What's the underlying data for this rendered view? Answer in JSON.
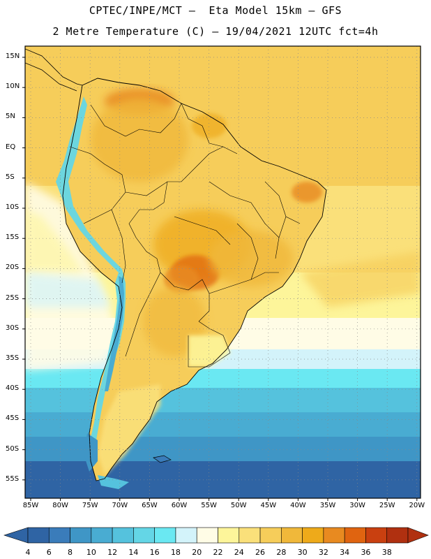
{
  "header": {
    "title_line1": "CPTEC/INPE/MCT –  Eta Model 15km – GFS",
    "title_line2": "2 Metre Temperature (C) – 19/04/2021 12UTC fct=4h"
  },
  "map": {
    "lat_labels": [
      "15N",
      "10N",
      "5N",
      "EQ",
      "5S",
      "10S",
      "15S",
      "20S",
      "25S",
      "30S",
      "35S",
      "40S",
      "45S",
      "50S",
      "55S"
    ],
    "lon_labels": [
      "85W",
      "80W",
      "75W",
      "70W",
      "65W",
      "60W",
      "55W",
      "50W",
      "45W",
      "40W",
      "35W",
      "30W",
      "25W",
      "20W"
    ],
    "frame_color": "#000000",
    "grid_color": "#888888"
  },
  "colorbar": {
    "labels": [
      "4",
      "6",
      "8",
      "10",
      "12",
      "14",
      "16",
      "18",
      "20",
      "22",
      "24",
      "26",
      "28",
      "30",
      "32",
      "34",
      "36",
      "38"
    ],
    "colors": [
      "#2f64a4",
      "#3a7cba",
      "#3f96c6",
      "#49acd2",
      "#55c2dd",
      "#64d6e6",
      "#6ae8f2",
      "#d3f3fa",
      "#fffce6",
      "#fdf59a",
      "#fae07a",
      "#f6cd5a",
      "#f0b83a",
      "#eeaa1a",
      "#e88a20",
      "#e06410",
      "#c94010",
      "#b03010"
    ],
    "low_color": "#2f64a4",
    "high_color": "#b03010"
  }
}
